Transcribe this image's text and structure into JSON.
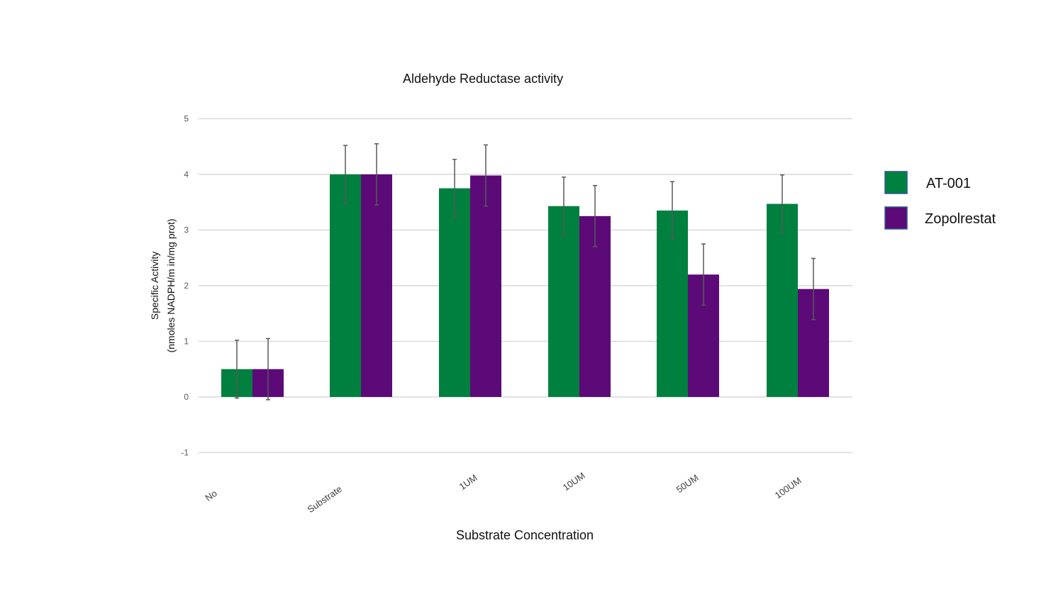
{
  "chart_data": {
    "type": "bar",
    "title": "Aldehyde Reductase activity",
    "xlabel": "Substrate Concentration",
    "ylabel_lines": [
      "Specific Activity",
      "(nmoles NADPH/m in/mg prot)"
    ],
    "categories": [
      "No",
      "Substrate",
      "1UM",
      "10UM",
      "50UM",
      "100UM"
    ],
    "ylim": [
      -1,
      5
    ],
    "yticks": [
      "-1",
      "0",
      "1",
      "2",
      "3",
      "4",
      "5"
    ],
    "grid": true,
    "legend_position": "right",
    "series": [
      {
        "name": "AT-001",
        "color": "#00803f",
        "values": [
          0.5,
          4.0,
          3.75,
          3.43,
          3.35,
          3.47
        ],
        "errors": [
          0.52,
          0.52,
          0.52,
          0.52,
          0.52,
          0.52
        ]
      },
      {
        "name": "Zopolrestat",
        "color": "#5c0a78",
        "values": [
          0.5,
          4.0,
          3.98,
          3.25,
          2.2,
          1.94
        ],
        "errors": [
          0.55,
          0.55,
          0.55,
          0.55,
          0.55,
          0.55
        ]
      }
    ]
  }
}
